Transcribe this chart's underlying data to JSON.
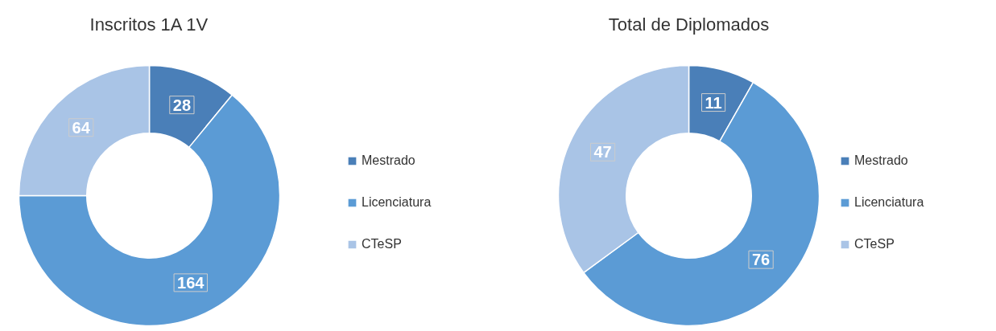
{
  "chart_data": [
    {
      "type": "donut",
      "title": "Inscritos 1A 1V",
      "categories": [
        "Mestrado",
        "Licenciatura",
        "CTeSP"
      ],
      "values": [
        28,
        164,
        64
      ],
      "colors": [
        "#4a7fb8",
        "#5b9bd5",
        "#a9c4e6"
      ],
      "data_labels": true,
      "legend": "right"
    },
    {
      "type": "donut",
      "title": "Total de Diplomados",
      "categories": [
        "Mestrado",
        "Licenciatura",
        "CTeSP"
      ],
      "values": [
        11,
        76,
        47
      ],
      "colors": [
        "#4a7fb8",
        "#5b9bd5",
        "#a9c4e6"
      ],
      "data_labels": true,
      "legend": "right"
    }
  ]
}
